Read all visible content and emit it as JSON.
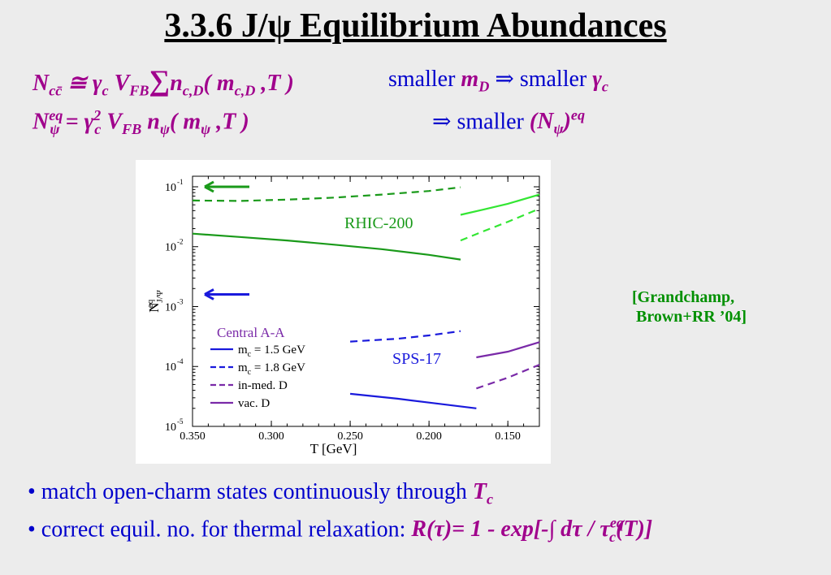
{
  "slide": {
    "title": "3.3.6 J/ψ Equilibrium Abundances",
    "formula1": "N_cc̄ ≅ γ_c V_FB ∑ n_c,D( m_c,D ,T )",
    "formula2": "N_ψ^eq = γ_c^2 V_FB n_ψ( m_ψ ,T )",
    "rhs1_a": "smaller",
    "rhs1_b": "m",
    "rhs1_b_sub": "D",
    "rhs1_arrow": "⇒",
    "rhs1_c": "smaller",
    "rhs1_d": "γ",
    "rhs1_d_sub": "c",
    "rhs2_arrow": "⇒",
    "rhs2_a": "smaller",
    "rhs2_b": "(N",
    "rhs2_b_sub": "ψ",
    "rhs2_b_close": ")",
    "rhs2_b_sup": "eq",
    "citation": "[Grandchamp,\n Brown+RR ’04]",
    "bullet1_text": "• match open-charm states continuously through ",
    "bullet1_em": "T",
    "bullet1_em_sub": "c",
    "bullet2_text": "• correct equil. no. for thermal relaxation: ",
    "bullet2_em": "R(τ)= 1 - exp[-∫ dτ / τ",
    "bullet2_em_sub": "c",
    "bullet2_em_sup": "eq",
    "bullet2_em_tail": "(T)]"
  },
  "chart_data": {
    "type": "line",
    "title": "",
    "xlabel": "T [GeV]",
    "ylabel": "N_J/Ψ^eq",
    "x_reversed": true,
    "xlim": [
      0.35,
      0.13
    ],
    "ylim": [
      1e-05,
      0.15
    ],
    "yscale": "log",
    "x_ticks": [
      0.35,
      0.3,
      0.25,
      0.2,
      0.15
    ],
    "x_tick_labels": [
      "0.350",
      "0.300",
      "0.250",
      "0.200",
      "0.150"
    ],
    "y_ticks": [
      1e-05,
      0.0001,
      0.001,
      0.01,
      0.1
    ],
    "y_tick_labels": [
      "10",
      "10",
      "10",
      "10",
      "10"
    ],
    "y_tick_exps": [
      "-5",
      "-4",
      "-3",
      "-2",
      "-1"
    ],
    "annotations": {
      "rhic": "RHIC-200",
      "sps": "SPS-17",
      "legend_title": "Central A-A"
    },
    "legend": [
      {
        "label": "m",
        "sub": "c",
        "rest": " = 1.5 GeV",
        "color": "#1a1adc",
        "dash": false
      },
      {
        "label": "m",
        "sub": "c",
        "rest": " = 1.8 GeV",
        "color": "#1a1adc",
        "dash": true
      },
      {
        "label": "in-med. D",
        "color": "#7a2aa8",
        "dash": true
      },
      {
        "label": "vac. D",
        "color": "#7a2aa8",
        "dash": false
      }
    ],
    "series": [
      {
        "color": "#1a9a1a",
        "dash": true,
        "x": [
          0.35,
          0.32,
          0.29,
          0.26,
          0.23,
          0.2,
          0.18
        ],
        "y": [
          0.059,
          0.058,
          0.061,
          0.066,
          0.074,
          0.085,
          0.098
        ]
      },
      {
        "color": "#1a9a1a",
        "dash": false,
        "x": [
          0.35,
          0.32,
          0.29,
          0.26,
          0.23,
          0.2,
          0.18
        ],
        "y": [
          0.0165,
          0.0145,
          0.0127,
          0.0108,
          0.0091,
          0.0073,
          0.0061
        ]
      },
      {
        "color": "#33e633",
        "dash": false,
        "x": [
          0.18,
          0.165,
          0.15,
          0.13
        ],
        "y": [
          0.034,
          0.042,
          0.052,
          0.074
        ]
      },
      {
        "color": "#33e633",
        "dash": true,
        "x": [
          0.18,
          0.165,
          0.15,
          0.13
        ],
        "y": [
          0.0127,
          0.0183,
          0.026,
          0.043
        ]
      },
      {
        "color": "#1a1adc",
        "dash": true,
        "x": [
          0.25,
          0.22,
          0.2,
          0.18
        ],
        "y": [
          0.00026,
          0.00029,
          0.00033,
          0.00039
        ]
      },
      {
        "color": "#1a1adc",
        "dash": false,
        "x": [
          0.25,
          0.22,
          0.2,
          0.17
        ],
        "y": [
          3.5e-05,
          2.9e-05,
          2.5e-05,
          2e-05
        ]
      },
      {
        "color": "#7a2aa8",
        "dash": false,
        "x": [
          0.17,
          0.15,
          0.13
        ],
        "y": [
          0.000142,
          0.000177,
          0.000255
        ]
      },
      {
        "color": "#7a2aa8",
        "dash": true,
        "x": [
          0.17,
          0.15,
          0.13
        ],
        "y": [
          4.3e-05,
          6.5e-05,
          0.000107
        ]
      }
    ],
    "arrows": [
      {
        "color": "#1a9a1a",
        "y": 0.1
      },
      {
        "color": "#1a1adc",
        "y": 0.0016
      }
    ]
  }
}
